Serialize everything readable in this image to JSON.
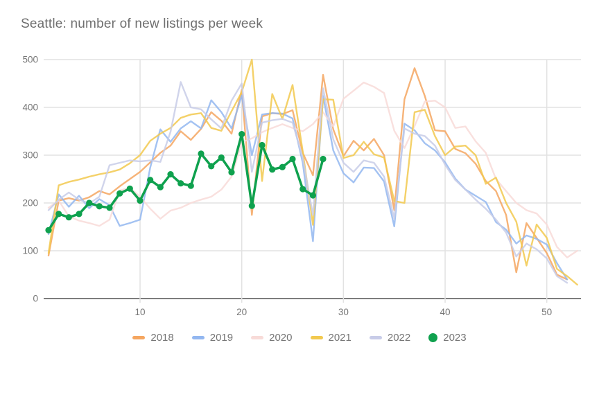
{
  "title": {
    "text": "Seattle: number of new listings per week",
    "color": "#6f6f6f"
  },
  "axes": {
    "y_ticks": [
      0,
      100,
      200,
      300,
      400,
      500
    ],
    "x_ticks": [
      10,
      20,
      30,
      40,
      50
    ],
    "tick_label_color": "#757575",
    "grid_color": "#e2e2e2",
    "baseline_color": "#7d7d7d"
  },
  "chart_data": {
    "type": "line",
    "title": "Seattle: number of new listings per week",
    "xlabel": "",
    "ylabel": "",
    "xlim": [
      1,
      53
    ],
    "ylim": [
      0,
      500
    ],
    "grid": true,
    "legend_position": "bottom",
    "x_unit": "week number of year",
    "series": [
      {
        "name": "2018",
        "color": "#F5A660",
        "marker": "none",
        "values": [
          90,
          205,
          210,
          205,
          212,
          225,
          218,
          235,
          250,
          265,
          285,
          305,
          320,
          350,
          332,
          355,
          390,
          372,
          345,
          437,
          175,
          381,
          388,
          386,
          394,
          305,
          258,
          468,
          354,
          298,
          330,
          310,
          334,
          300,
          185,
          417,
          482,
          424,
          352,
          350,
          313,
          304,
          282,
          246,
          225,
          175,
          55,
          158,
          127,
          95,
          50,
          40
        ]
      },
      {
        "name": "2019",
        "color": "#93B7F0",
        "marker": "none",
        "values": [
          135,
          218,
          192,
          215,
          189,
          208,
          195,
          152,
          158,
          165,
          274,
          354,
          328,
          356,
          371,
          356,
          415,
          390,
          356,
          425,
          300,
          385,
          388,
          387,
          377,
          284,
          120,
          424,
          310,
          262,
          243,
          274,
          273,
          245,
          151,
          366,
          352,
          325,
          310,
          285,
          251,
          228,
          215,
          202,
          160,
          144,
          115,
          132,
          125,
          113,
          74,
          40
        ]
      },
      {
        "name": "2020",
        "color": "#F8DBD8",
        "marker": "none",
        "values": [
          190,
          205,
          172,
          163,
          158,
          152,
          165,
          226,
          232,
          213,
          188,
          167,
          184,
          190,
          200,
          207,
          213,
          228,
          255,
          327,
          335,
          348,
          357,
          365,
          357,
          350,
          365,
          390,
          360,
          418,
          435,
          452,
          443,
          430,
          351,
          315,
          361,
          412,
          414,
          400,
          357,
          360,
          329,
          305,
          250,
          225,
          200,
          185,
          178,
          155,
          108,
          86,
          100
        ]
      },
      {
        "name": "2021",
        "color": "#F2C94F",
        "marker": "none",
        "values": [
          95,
          237,
          244,
          249,
          255,
          260,
          264,
          270,
          283,
          300,
          330,
          345,
          357,
          378,
          385,
          388,
          357,
          351,
          392,
          432,
          500,
          246,
          428,
          376,
          447,
          308,
          154,
          417,
          416,
          294,
          300,
          328,
          302,
          295,
          204,
          200,
          390,
          395,
          340,
          300,
          318,
          320,
          300,
          240,
          253,
          200,
          161,
          69,
          155,
          127,
          62,
          47,
          29
        ]
      },
      {
        "name": "2022",
        "color": "#C8CCE8",
        "marker": "none",
        "values": [
          185,
          207,
          222,
          207,
          199,
          213,
          279,
          284,
          289,
          287,
          289,
          286,
          349,
          453,
          400,
          396,
          375,
          356,
          414,
          450,
          265,
          368,
          373,
          376,
          368,
          294,
          175,
          440,
          333,
          284,
          265,
          289,
          284,
          255,
          168,
          356,
          345,
          340,
          320,
          280,
          248,
          228,
          207,
          188,
          165,
          138,
          88,
          115,
          103,
          84,
          47,
          33
        ]
      },
      {
        "name": "2023",
        "color": "#0FA14E",
        "marker": "circle",
        "values": [
          143,
          177,
          170,
          177,
          200,
          193,
          190,
          220,
          230,
          205,
          248,
          233,
          260,
          241,
          236,
          303,
          277,
          295,
          264,
          344,
          194,
          321,
          270,
          275,
          292,
          229,
          216,
          292
        ]
      }
    ]
  },
  "legend": {
    "items": [
      {
        "label": "2018",
        "color": "#F5A660",
        "shape": "dash"
      },
      {
        "label": "2019",
        "color": "#93B7F0",
        "shape": "dash"
      },
      {
        "label": "2020",
        "color": "#F8DBD8",
        "shape": "dash"
      },
      {
        "label": "2021",
        "color": "#F2C94F",
        "shape": "dash"
      },
      {
        "label": "2022",
        "color": "#C8CCE8",
        "shape": "dash"
      },
      {
        "label": "2023",
        "color": "#0FA14E",
        "shape": "circle"
      }
    ]
  }
}
